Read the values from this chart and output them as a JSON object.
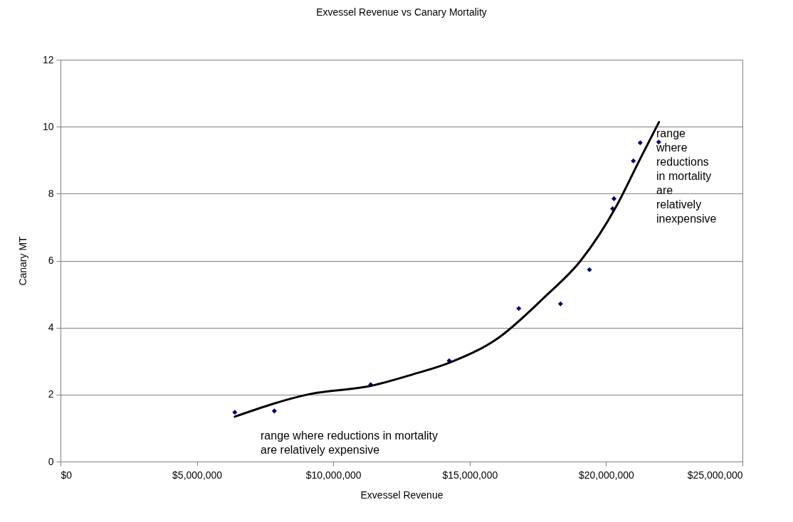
{
  "chart_data": {
    "type": "scatter",
    "title": "Exvessel Revenue vs Canary Mortality",
    "xlabel": "Exvessel Revenue",
    "ylabel": "Canary MT",
    "xlim": [
      0,
      25000000
    ],
    "xticks": [
      {
        "value": 0,
        "label": "$0"
      },
      {
        "value": 5000000,
        "label": "$5,000,000"
      },
      {
        "value": 10000000,
        "label": "$10,000,000"
      },
      {
        "value": 15000000,
        "label": "$15,000,000"
      },
      {
        "value": 20000000,
        "label": "$20,000,000"
      },
      {
        "value": 25000000,
        "label": "$25,000,000"
      }
    ],
    "ylim": [
      0,
      12
    ],
    "yticks": [
      0,
      2,
      4,
      6,
      8,
      10,
      12
    ],
    "grid": "y",
    "legend": false,
    "series": [
      {
        "type": "scatter",
        "color": "#000080",
        "marker": "diamond",
        "x": [
          6390000,
          7840000,
          11370000,
          14250000,
          16800000,
          18330000,
          19390000,
          20240000,
          20290000,
          21000000,
          21250000,
          21930000
        ],
        "values": [
          1.47,
          1.51,
          2.3,
          3.01,
          4.57,
          4.71,
          5.73,
          7.55,
          7.85,
          8.98,
          9.52,
          9.54
        ]
      },
      {
        "type": "line",
        "color": "#000000",
        "line_style": "solid",
        "x": [
          6390000,
          9170000,
          11370000,
          12900000,
          14250000,
          16030000,
          17770000,
          19070000,
          20380000,
          21250000,
          21940000
        ],
        "values": [
          1.34,
          2.02,
          2.26,
          2.6,
          2.95,
          3.68,
          4.93,
          6.0,
          7.63,
          9.04,
          10.14
        ]
      }
    ],
    "annotations": [
      "range where reductions in mortality\nare relatively expensive",
      "range\nwhere\nreductions\nin mortality\nare\nrelatively\ninexpensive"
    ]
  }
}
